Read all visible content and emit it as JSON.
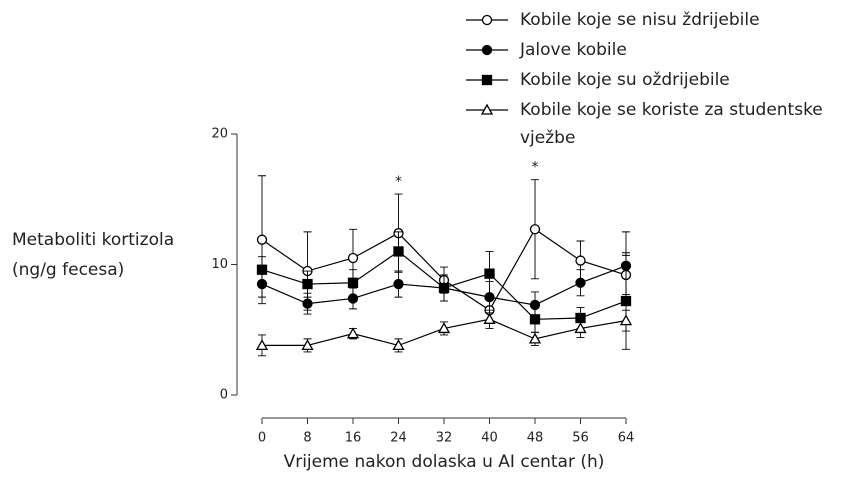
{
  "chart_data": {
    "type": "line",
    "x_label": "Vrijeme nakon dolaska u AI centar (h)",
    "y_label": "Metaboliti kortizola (ng/g fecesa)",
    "x": [
      0,
      8,
      16,
      24,
      32,
      40,
      48,
      56,
      64
    ],
    "xlim": [
      0,
      64
    ],
    "xticks": [
      0,
      8,
      16,
      24,
      32,
      40,
      48,
      56,
      64
    ],
    "ylim": [
      0,
      20
    ],
    "yticks": [
      0,
      10,
      20
    ],
    "grid": false,
    "series": [
      {
        "name": "Kobile koje se nisu ždrijebile",
        "color": "#000000",
        "marker": "circle-open",
        "values": [
          11.9,
          9.5,
          10.5,
          12.4,
          8.8,
          6.5,
          12.7,
          10.3,
          9.2
        ],
        "errors": [
          4.9,
          3.0,
          2.2,
          3.0,
          1.0,
          1.0,
          3.8,
          1.5,
          1.5
        ]
      },
      {
        "name": "Jalove kobile",
        "color": "#000000",
        "marker": "circle-filled",
        "values": [
          8.5,
          7.0,
          7.4,
          8.5,
          8.2,
          7.5,
          6.9,
          8.6,
          9.9
        ],
        "errors": [
          1.0,
          0.8,
          0.8,
          1.0,
          1.0,
          1.2,
          1.0,
          1.0,
          2.6
        ]
      },
      {
        "name": "Kobile koje su oždrijebile",
        "color": "#000000",
        "marker": "square-filled",
        "values": [
          9.6,
          8.5,
          8.6,
          11.0,
          8.2,
          9.3,
          5.8,
          5.9,
          7.2
        ],
        "errors": [
          1.0,
          1.0,
          1.0,
          1.5,
          1.0,
          1.7,
          1.0,
          0.8,
          3.7
        ]
      },
      {
        "name": "Kobile koje se koriste za studentske vježbe",
        "color": "#000000",
        "marker": "triangle-open",
        "values": [
          3.8,
          3.8,
          4.7,
          3.8,
          5.1,
          5.8,
          4.3,
          5.1,
          5.7
        ],
        "errors": [
          0.8,
          0.5,
          0.4,
          0.5,
          0.5,
          0.7,
          0.5,
          0.7,
          0.8
        ]
      }
    ],
    "annotations": [
      {
        "text": "*",
        "x": 24
      },
      {
        "text": "*",
        "x": 48
      }
    ]
  }
}
